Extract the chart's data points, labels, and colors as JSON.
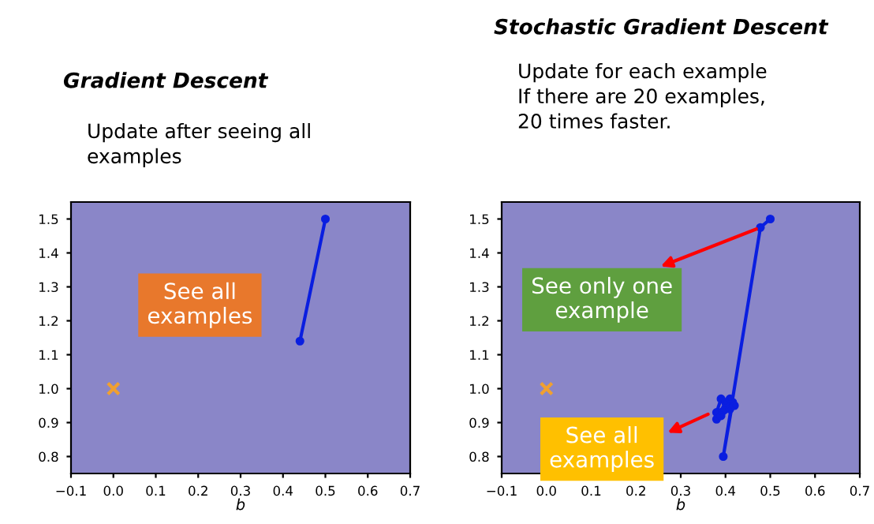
{
  "chart_data": [
    {
      "type": "line",
      "title": "Gradient Descent",
      "subtitle": "Update after seeing all\nexamples",
      "xlabel": "b",
      "xlim": [
        -0.1,
        0.7
      ],
      "xticks": [
        -0.1,
        {
          "value": 0,
          "label": "0.0"
        },
        0.1,
        0.2,
        0.3,
        0.4,
        0.5,
        0.6,
        0.7
      ],
      "ylim": [
        0.75,
        1.55
      ],
      "yticks": [
        0.8,
        0.9,
        {
          "value": 1,
          "label": "1.0"
        },
        1.1,
        1.2,
        1.3,
        1.4,
        1.5
      ],
      "grid": false,
      "series": [
        {
          "color": "#0a1ee0",
          "marker": "circle",
          "x": [
            0.5,
            0.44
          ],
          "values": [
            1.5,
            1.14
          ]
        },
        {
          "type": "scatter",
          "color": "#f0a030",
          "marker": "cross",
          "x": [
            0.0
          ],
          "values": [
            1.0
          ]
        }
      ],
      "annotations": [
        "See all\nexamples"
      ]
    },
    {
      "type": "line",
      "title": "Stochastic Gradient Descent",
      "subtitle": "Update for each example\nIf there are 20 examples,\n20 times faster.",
      "xlabel": "b",
      "xlim": [
        -0.1,
        0.7
      ],
      "xticks": [
        -0.1,
        {
          "value": 0,
          "label": "0.0"
        },
        0.1,
        0.2,
        0.3,
        0.4,
        0.5,
        0.6,
        0.7
      ],
      "ylim": [
        0.75,
        1.55
      ],
      "yticks": [
        0.8,
        0.9,
        {
          "value": 1,
          "label": "1.0"
        },
        1.1,
        1.2,
        1.3,
        1.4,
        1.5
      ],
      "grid": false,
      "series": [
        {
          "color": "#0a1ee0",
          "marker": "circle",
          "x": [
            0.5,
            0.478,
            0.395,
            0.416,
            0.38,
            0.39,
            0.41,
            0.38,
            0.4,
            0.42,
            0.39,
            0.41
          ],
          "values": [
            1.5,
            1.475,
            0.8,
            0.96,
            0.93,
            0.97,
            0.94,
            0.91,
            0.96,
            0.95,
            0.92,
            0.97
          ]
        },
        {
          "type": "scatter",
          "color": "#f0a030",
          "marker": "cross",
          "x": [
            0.0
          ],
          "values": [
            1.0
          ]
        }
      ],
      "annotations": [
        {
          "text": "See only one\nexample",
          "x": 0.478,
          "y": 1.475
        },
        {
          "text": "See all\nexamples",
          "x": 0.37,
          "y": 0.93
        }
      ]
    }
  ]
}
